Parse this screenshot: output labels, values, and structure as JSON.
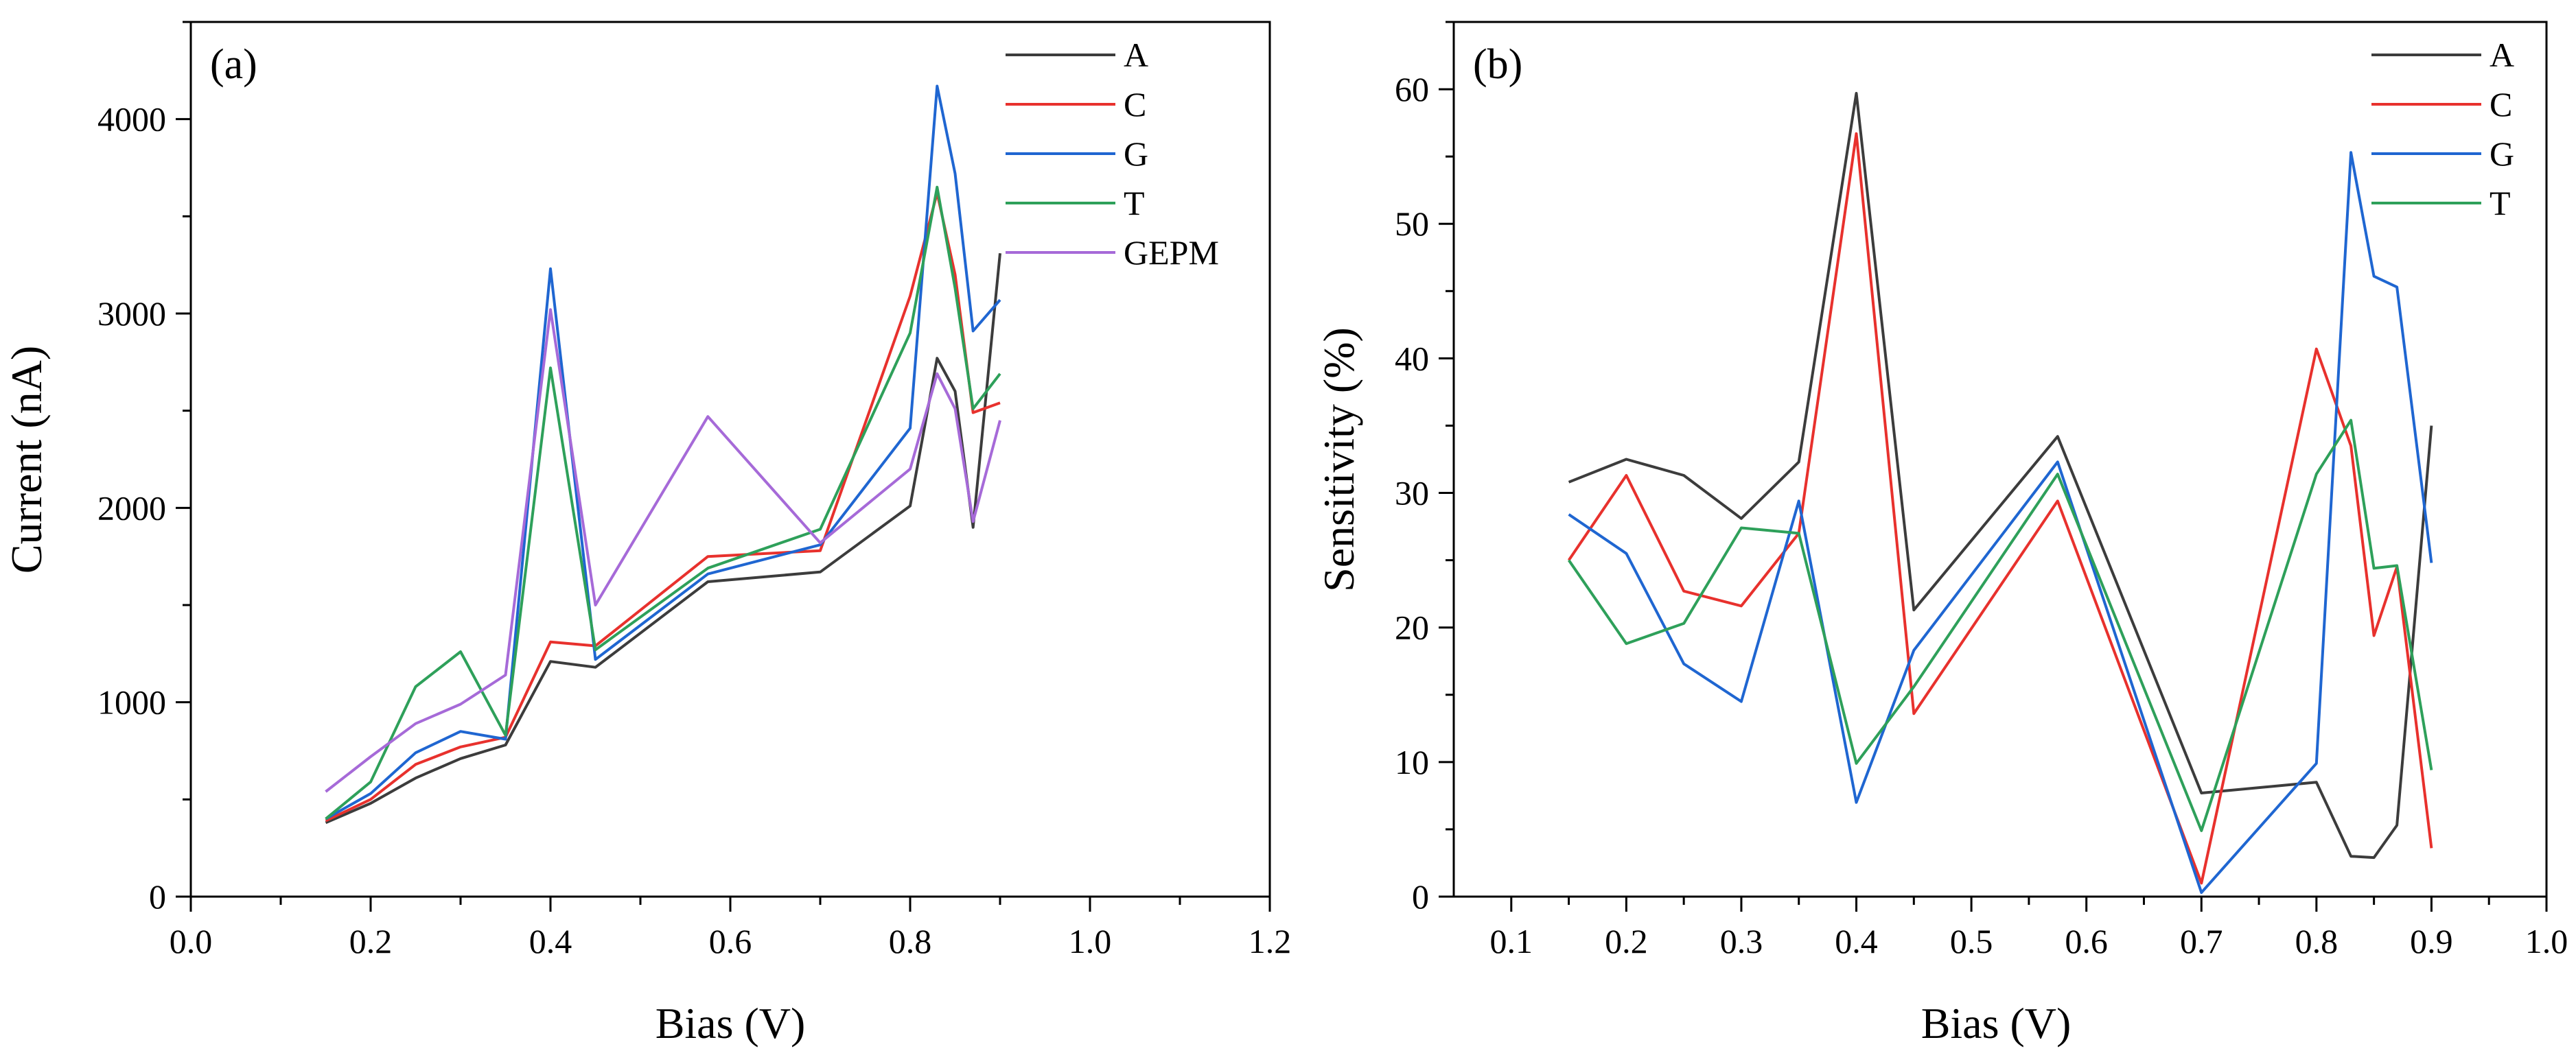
{
  "chart_data": [
    {
      "type": "line",
      "panel_label": "(a)",
      "xlabel": "Bias (V)",
      "ylabel": "Current (nA)",
      "xlim": [
        0.0,
        1.2
      ],
      "ylim": [
        0,
        4500
      ],
      "xticks": [
        0.0,
        0.2,
        0.4,
        0.6,
        0.8,
        1.0,
        1.2
      ],
      "xtick_labels": [
        "0.0",
        "0.2",
        "0.4",
        "0.6",
        "0.8",
        "1.0",
        "1.2"
      ],
      "yticks": [
        0,
        1000,
        2000,
        3000,
        4000
      ],
      "ytick_labels": [
        "0",
        "1000",
        "2000",
        "3000",
        "4000"
      ],
      "legend_position": "top-right",
      "series": [
        {
          "name": "A",
          "color": "#3c3c3c",
          "x": [
            0.15,
            0.2,
            0.25,
            0.3,
            0.35,
            0.4,
            0.45,
            0.575,
            0.7,
            0.8,
            0.83,
            0.85,
            0.87,
            0.9
          ],
          "y": [
            380,
            480,
            610,
            710,
            780,
            1210,
            1180,
            1620,
            1670,
            2010,
            2770,
            2600,
            1900,
            3310
          ]
        },
        {
          "name": "C",
          "color": "#e8312d",
          "x": [
            0.15,
            0.2,
            0.25,
            0.3,
            0.35,
            0.4,
            0.45,
            0.575,
            0.7,
            0.8,
            0.83,
            0.85,
            0.87,
            0.9
          ],
          "y": [
            390,
            500,
            680,
            770,
            820,
            1310,
            1290,
            1750,
            1780,
            3090,
            3620,
            3200,
            2490,
            2540
          ]
        },
        {
          "name": "G",
          "color": "#1f66d1",
          "x": [
            0.15,
            0.2,
            0.25,
            0.3,
            0.35,
            0.4,
            0.45,
            0.575,
            0.7,
            0.8,
            0.83,
            0.85,
            0.87,
            0.9
          ],
          "y": [
            400,
            530,
            740,
            850,
            810,
            3230,
            1220,
            1660,
            1810,
            2410,
            4170,
            3720,
            2910,
            3070
          ]
        },
        {
          "name": "T",
          "color": "#2ea05a",
          "x": [
            0.15,
            0.2,
            0.25,
            0.3,
            0.35,
            0.4,
            0.45,
            0.575,
            0.7,
            0.8,
            0.83,
            0.85,
            0.87,
            0.9
          ],
          "y": [
            400,
            590,
            1080,
            1260,
            830,
            2720,
            1270,
            1690,
            1890,
            2900,
            3650,
            3130,
            2510,
            2690
          ]
        },
        {
          "name": "GEPM",
          "color": "#a66ad8",
          "x": [
            0.15,
            0.2,
            0.25,
            0.3,
            0.35,
            0.4,
            0.45,
            0.575,
            0.7,
            0.8,
            0.83,
            0.85,
            0.87,
            0.9
          ],
          "y": [
            540,
            720,
            890,
            990,
            1140,
            3020,
            1500,
            2470,
            1820,
            2200,
            2690,
            2510,
            1930,
            2450
          ]
        }
      ]
    },
    {
      "type": "line",
      "panel_label": "(b)",
      "xlabel": "Bias (V)",
      "ylabel": "Sensitivity (%)",
      "xlim": [
        0.05,
        1.0
      ],
      "ylim": [
        0,
        65
      ],
      "xticks": [
        0.1,
        0.2,
        0.3,
        0.4,
        0.5,
        0.6,
        0.7,
        0.8,
        0.9,
        1.0
      ],
      "xtick_labels": [
        "0.1",
        "0.2",
        "0.3",
        "0.4",
        "0.5",
        "0.6",
        "0.7",
        "0.8",
        "0.9",
        "1.0"
      ],
      "yticks": [
        0,
        10,
        20,
        30,
        40,
        50,
        60
      ],
      "ytick_labels": [
        "0",
        "10",
        "20",
        "30",
        "40",
        "50",
        "60"
      ],
      "legend_position": "top-right",
      "series": [
        {
          "name": "A",
          "color": "#3c3c3c",
          "x": [
            0.15,
            0.2,
            0.25,
            0.3,
            0.35,
            0.4,
            0.45,
            0.575,
            0.7,
            0.8,
            0.83,
            0.85,
            0.87,
            0.9
          ],
          "y": [
            30.8,
            32.5,
            31.3,
            28.1,
            32.3,
            59.7,
            21.3,
            34.2,
            7.7,
            8.5,
            3.0,
            2.9,
            5.3,
            35.0
          ]
        },
        {
          "name": "C",
          "color": "#e8312d",
          "x": [
            0.15,
            0.2,
            0.25,
            0.3,
            0.35,
            0.4,
            0.45,
            0.575,
            0.7,
            0.8,
            0.83,
            0.85,
            0.87,
            0.9
          ],
          "y": [
            25.0,
            31.3,
            22.7,
            21.6,
            27.0,
            56.7,
            13.6,
            29.4,
            1.0,
            40.7,
            33.5,
            19.4,
            24.5,
            3.6
          ]
        },
        {
          "name": "G",
          "color": "#1f66d1",
          "x": [
            0.15,
            0.2,
            0.25,
            0.3,
            0.35,
            0.4,
            0.45,
            0.575,
            0.7,
            0.8,
            0.83,
            0.85,
            0.87,
            0.9
          ],
          "y": [
            28.4,
            25.5,
            17.3,
            14.5,
            29.4,
            7.0,
            18.3,
            32.3,
            0.3,
            9.9,
            55.3,
            46.1,
            45.3,
            24.8
          ]
        },
        {
          "name": "T",
          "color": "#2ea05a",
          "x": [
            0.15,
            0.2,
            0.25,
            0.3,
            0.35,
            0.4,
            0.45,
            0.575,
            0.7,
            0.8,
            0.83,
            0.85,
            0.87,
            0.9
          ],
          "y": [
            25.0,
            18.8,
            20.3,
            27.4,
            27.0,
            9.9,
            15.6,
            31.4,
            4.9,
            31.4,
            35.4,
            24.4,
            24.6,
            9.4
          ]
        }
      ]
    }
  ]
}
